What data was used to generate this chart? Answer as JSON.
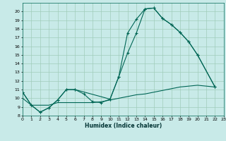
{
  "bg_color": "#c8eae8",
  "grid_color": "#a0ccbb",
  "line_color": "#006655",
  "xlim": [
    0,
    23
  ],
  "ylim": [
    8,
    21
  ],
  "yticks": [
    8,
    9,
    10,
    11,
    12,
    13,
    14,
    15,
    16,
    17,
    18,
    19,
    20
  ],
  "xticks": [
    0,
    1,
    2,
    3,
    4,
    5,
    6,
    7,
    8,
    9,
    10,
    11,
    12,
    13,
    14,
    15,
    16,
    17,
    18,
    19,
    20,
    21,
    22,
    23
  ],
  "xlabel": "Humidex (Indice chaleur)",
  "line1": {
    "x": [
      0,
      1,
      2,
      3,
      4,
      5,
      6,
      7,
      8,
      9,
      10,
      11,
      12,
      13,
      14,
      15,
      16,
      17,
      18,
      19,
      20,
      22
    ],
    "y": [
      10.7,
      9.2,
      8.4,
      8.9,
      9.8,
      11.0,
      11.0,
      10.5,
      9.6,
      9.5,
      9.9,
      12.5,
      17.5,
      19.1,
      20.3,
      20.4,
      19.2,
      18.5,
      17.6,
      16.5,
      15.0,
      11.3
    ],
    "has_markers": true
  },
  "line2": {
    "x": [
      0,
      1,
      2,
      3,
      4,
      5,
      6,
      10,
      11,
      12,
      13,
      14,
      15,
      16,
      17,
      18,
      19,
      20,
      22
    ],
    "y": [
      10.7,
      9.2,
      8.4,
      8.9,
      9.8,
      11.0,
      11.0,
      9.9,
      12.5,
      15.2,
      17.5,
      20.3,
      20.4,
      19.2,
      18.5,
      17.6,
      16.5,
      15.0,
      11.3
    ],
    "has_markers": true
  },
  "line3": {
    "x": [
      0,
      1,
      2,
      3,
      4,
      5,
      6,
      7,
      8,
      9,
      10,
      11,
      12,
      13,
      14,
      15,
      16,
      17,
      18,
      19,
      20,
      21,
      22
    ],
    "y": [
      10.0,
      9.2,
      9.2,
      9.2,
      9.5,
      9.5,
      9.5,
      9.5,
      9.5,
      9.6,
      9.8,
      10.0,
      10.2,
      10.4,
      10.5,
      10.7,
      10.9,
      11.1,
      11.3,
      11.4,
      11.5,
      11.4,
      11.3
    ],
    "has_markers": false
  }
}
